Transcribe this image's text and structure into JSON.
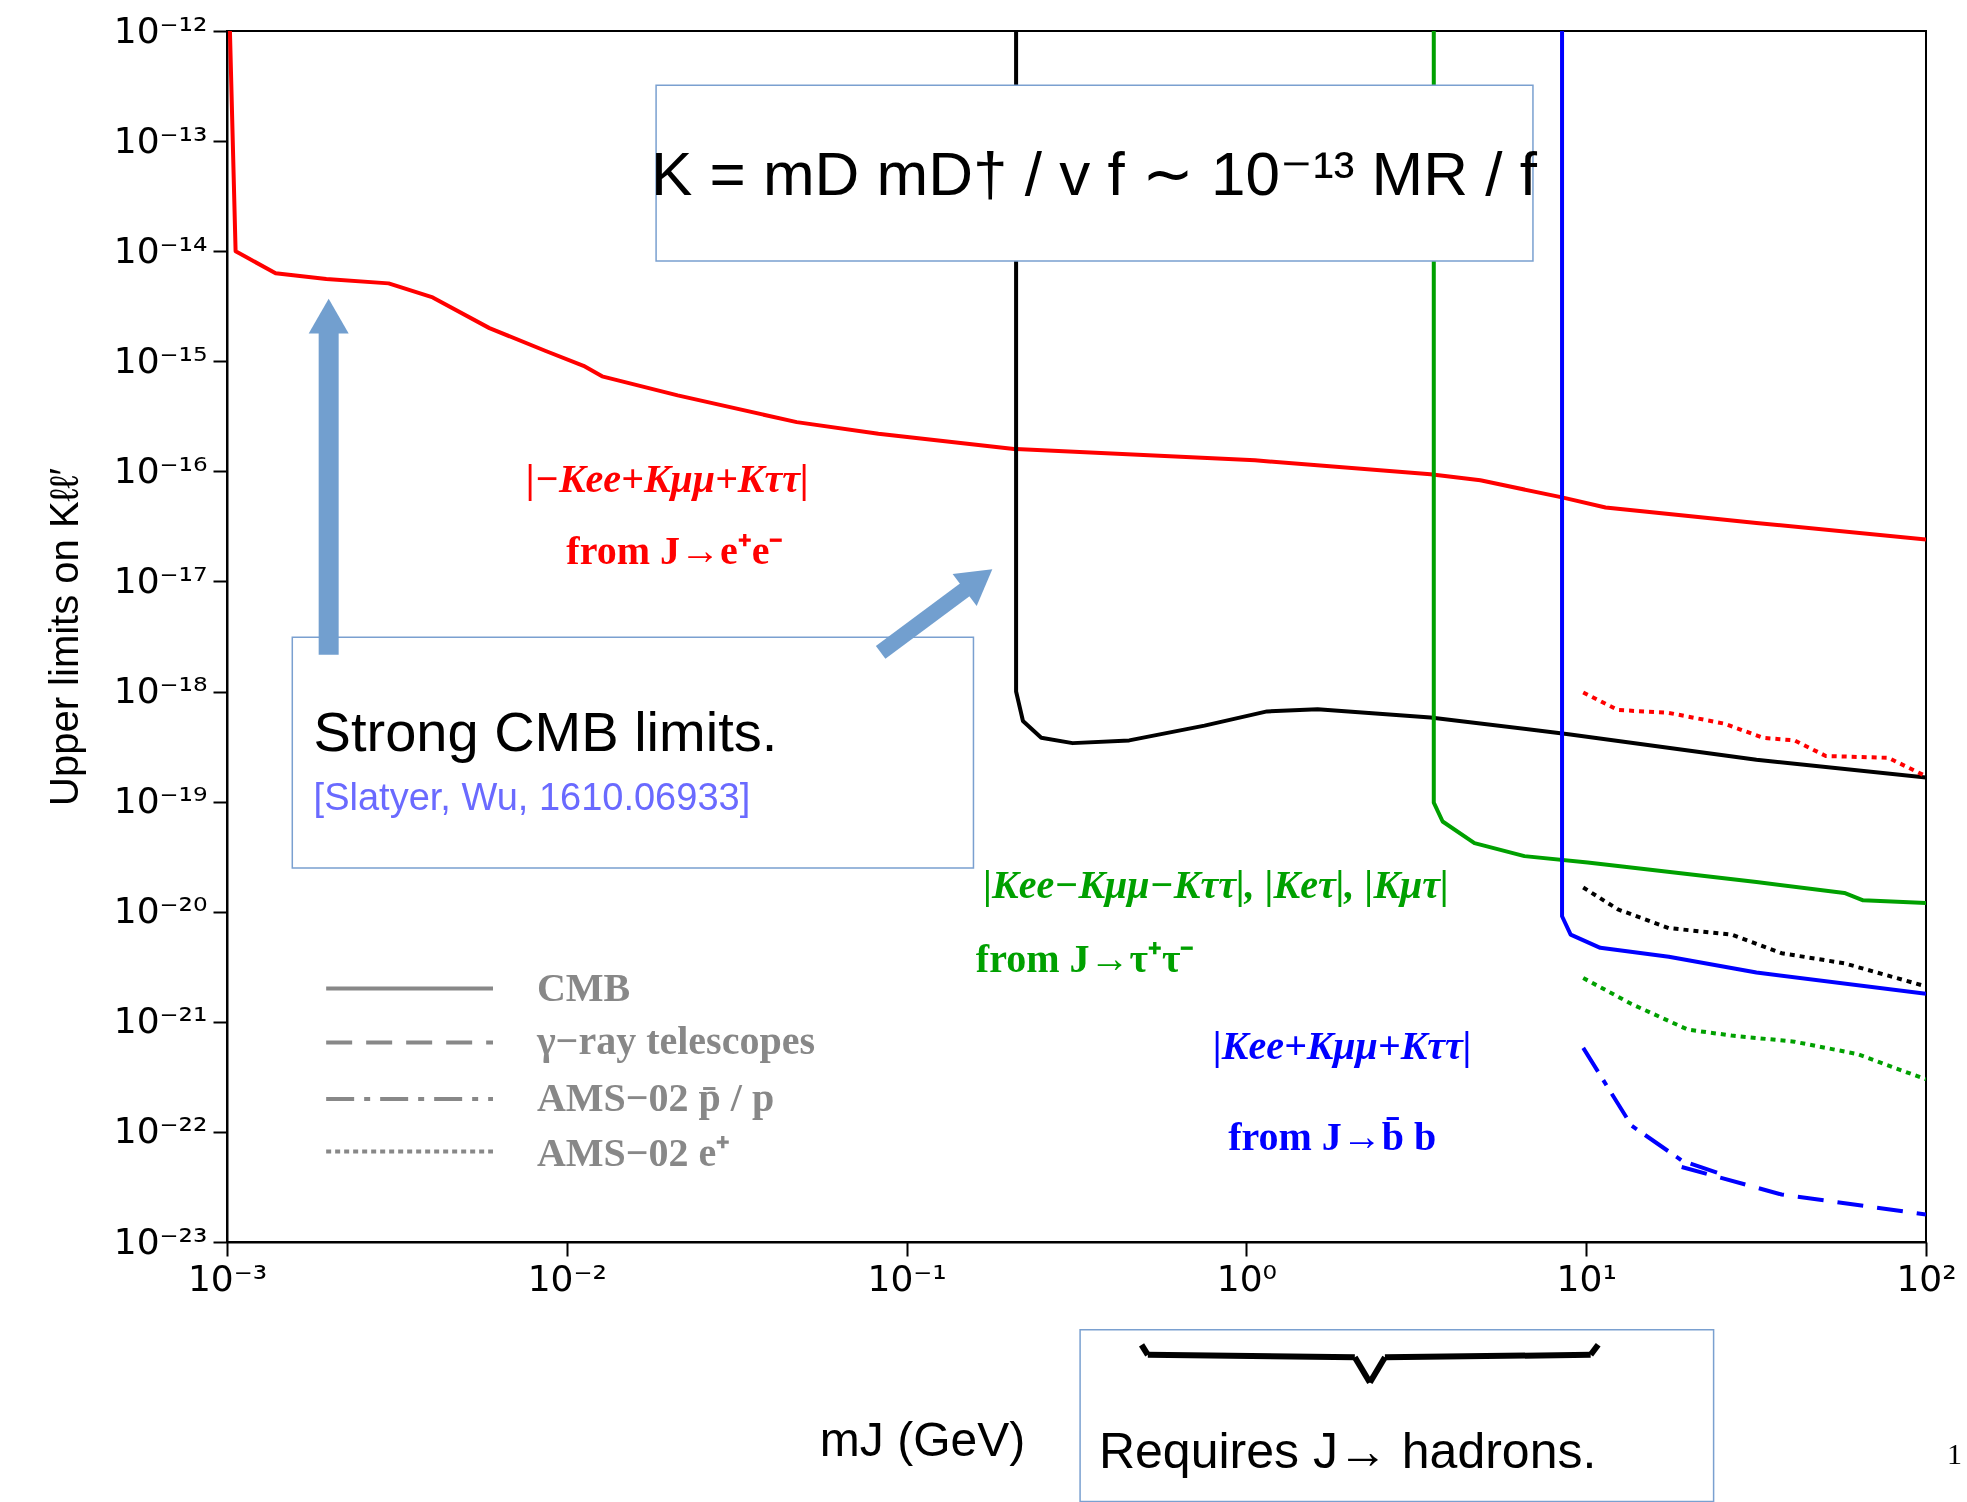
{
  "chart_data": {
    "type": "line",
    "xlabel": "mJ (GeV)",
    "ylabel": "Upper limits on Kℓℓ′",
    "log": "xy",
    "xlim": [
      0.001,
      100
    ],
    "ylim": [
      1e-23,
      1e-12
    ],
    "xticks": [
      {
        "value": 0.001,
        "label": "10⁻³"
      },
      {
        "value": 0.01,
        "label": "10⁻²"
      },
      {
        "value": 0.1,
        "label": "10⁻¹"
      },
      {
        "value": 1,
        "label": "10⁰"
      },
      {
        "value": 10,
        "label": "10¹"
      },
      {
        "value": 100,
        "label": "10²"
      }
    ],
    "yticks": [
      {
        "value": 1e-23,
        "label": "10⁻²³"
      },
      {
        "value": 1e-22,
        "label": "10⁻²²"
      },
      {
        "value": 1e-21,
        "label": "10⁻²¹"
      },
      {
        "value": 1e-20,
        "label": "10⁻²⁰"
      },
      {
        "value": 1e-19,
        "label": "10⁻¹⁹"
      },
      {
        "value": 1e-18,
        "label": "10⁻¹⁸"
      },
      {
        "value": 1e-17,
        "label": "10⁻¹⁷"
      },
      {
        "value": 1e-16,
        "label": "10⁻¹⁶"
      },
      {
        "value": 1e-15,
        "label": "10⁻¹⁵"
      },
      {
        "value": 1e-14,
        "label": "10⁻¹⁴"
      },
      {
        "value": 1e-13,
        "label": "10⁻¹³"
      },
      {
        "value": 1e-12,
        "label": "10⁻¹²"
      }
    ],
    "series": [
      {
        "color": "#ff0000",
        "line_style": "solid",
        "x": [
          0.00102,
          0.00106,
          0.00139,
          0.00196,
          0.00299,
          0.00403,
          0.00592,
          0.00867,
          0.0112,
          0.0127,
          0.0212,
          0.0475,
          0.0826,
          0.207,
          1.06,
          3.48,
          4.88,
          8.49,
          11.4,
          31.7,
          100
        ],
        "values": [
          1e-12,
          1e-14,
          6.3e-15,
          5.6e-15,
          5.1e-15,
          3.8e-15,
          2e-15,
          1.24e-15,
          9.1e-16,
          7.3e-16,
          4.9e-16,
          2.8e-16,
          2.2e-16,
          1.6e-16,
          1.26e-16,
          9.4e-17,
          8.3e-17,
          5.8e-17,
          4.7e-17,
          3.4e-17,
          2.4e-17
        ]
      },
      {
        "color": "#000000",
        "line_style": "solid",
        "x": [
          0.21,
          0.21,
          0.22,
          0.249,
          0.308,
          0.452,
          0.753,
          1.15,
          1.62,
          3.48,
          8.87,
          31.7,
          100
        ],
        "values": [
          1e-12,
          1e-18,
          5.4e-19,
          3.8e-19,
          3.4e-19,
          3.6e-19,
          4.9e-19,
          6.6e-19,
          6.9e-19,
          5.8e-19,
          4.1e-19,
          2.4e-19,
          1.66e-19
        ]
      },
      {
        "color": "#00a000",
        "line_style": "solid",
        "x": [
          3.56,
          3.56,
          3.78,
          4.69,
          6.58,
          10.1,
          31.7,
          57.5,
          65.3,
          100
        ],
        "values": [
          1e-12,
          9.8e-20,
          6.6e-20,
          4.2e-20,
          3.2e-20,
          2.8e-20,
          1.86e-20,
          1.48e-20,
          1.27e-20,
          1.2e-20
        ]
      },
      {
        "color": "#0000ff",
        "line_style": "solid",
        "x": [
          8.49,
          8.49,
          9.0,
          11.0,
          17.5,
          31.7,
          100
        ],
        "values": [
          1e-12,
          9.1e-21,
          6.2e-21,
          4.7e-21,
          3.9e-21,
          2.8e-21,
          1.8e-21
        ]
      },
      {
        "color": "#ff0000",
        "line_style": "dotted",
        "x": [
          9.8,
          12.4,
          17.5,
          25.6,
          33.1,
          41,
          50.7,
          77.5,
          100
        ],
        "values": [
          9.8e-19,
          6.8e-19,
          6.4e-19,
          5.1e-19,
          3.8e-19,
          3.6e-19,
          2.6e-19,
          2.5e-19,
          1.7e-19
        ]
      },
      {
        "color": "#000000",
        "line_style": "dotted",
        "x": [
          9.8,
          12.4,
          17.5,
          26.8,
          37.6,
          57.5,
          100
        ],
        "values": [
          1.66e-20,
          1.05e-20,
          7.1e-21,
          6.2e-21,
          4.2e-21,
          3.4e-21,
          2.1e-21
        ]
      },
      {
        "color": "#00a000",
        "line_style": "dotted",
        "x": [
          9.8,
          13.6,
          19.9,
          26.8,
          41,
          62.7,
          100
        ],
        "values": [
          2.5e-21,
          1.45e-21,
          8.5e-22,
          7.5e-22,
          6.6e-22,
          5.1e-22,
          3e-22
        ]
      },
      {
        "color": "#0000ff",
        "line_style": "dashdot",
        "x": [
          9.8,
          13.6,
          19.1,
          24.6
        ],
        "values": [
          5.8e-22,
          1.14e-22,
          5.5e-23,
          4.2e-23
        ]
      },
      {
        "color": "#0000ff",
        "line_style": "dashed",
        "x": [
          19.1,
          37.6,
          100
        ],
        "values": [
          4.8e-23,
          2.7e-23,
          1.78e-23
        ]
      }
    ],
    "annotations": [
      "K = mD mD† / v f ∼ 10⁻¹³ MR / f",
      "|−Kee+Kμμ+Kττ|",
      "from J→e⁺e⁻",
      "|Kee−Kμμ−Kττ|, |Keτ|, |Kμτ|",
      "from J→τ⁺τ⁻",
      "|Kee+Kμμ+Kττ|",
      "from J→b̄ b",
      "Strong CMB limits.",
      "[Slatyer, Wu, 1610.06933]",
      "CMB",
      "γ−ray telescopes",
      "AMS−02   p̄ / p",
      "AMS−02   e⁺",
      "Requires J→ hadrons.",
      "1"
    ]
  }
}
